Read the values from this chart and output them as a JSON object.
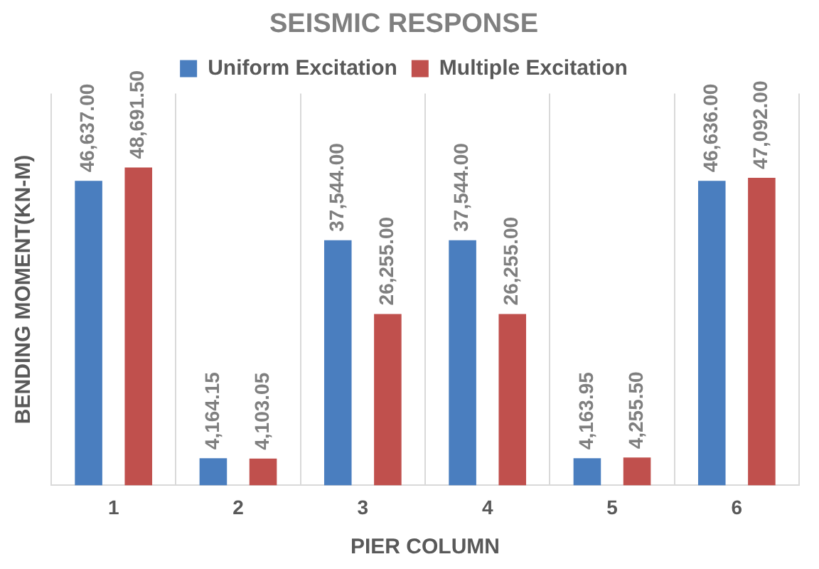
{
  "chart_data": {
    "type": "bar",
    "title": "SEISMIC RESPONSE",
    "xlabel": "PIER COLUMN",
    "ylabel": "BENDING MOMENT(KN-M)",
    "categories": [
      "1",
      "2",
      "3",
      "4",
      "5",
      "6"
    ],
    "series": [
      {
        "name": "Uniform Excitation",
        "color": "#4a7ebf",
        "values": [
          46637,
          4164.15,
          37544,
          37544,
          4163.95,
          46636
        ],
        "value_labels": [
          "46,637.00",
          "4,164.15",
          "37,544.00",
          "37,544.00",
          "4,163.95",
          "46,636.00"
        ]
      },
      {
        "name": "Multiple Excitation",
        "color": "#c0504d",
        "values": [
          48691.5,
          4103.05,
          26255,
          26255,
          4255.5,
          47092
        ],
        "value_labels": [
          "48,691.50",
          "4,103.05",
          "26,255.00",
          "26,255.00",
          "4,255.50",
          "47,092.00"
        ]
      }
    ],
    "grid": "x",
    "legend": "top",
    "tick_labels": "x"
  }
}
